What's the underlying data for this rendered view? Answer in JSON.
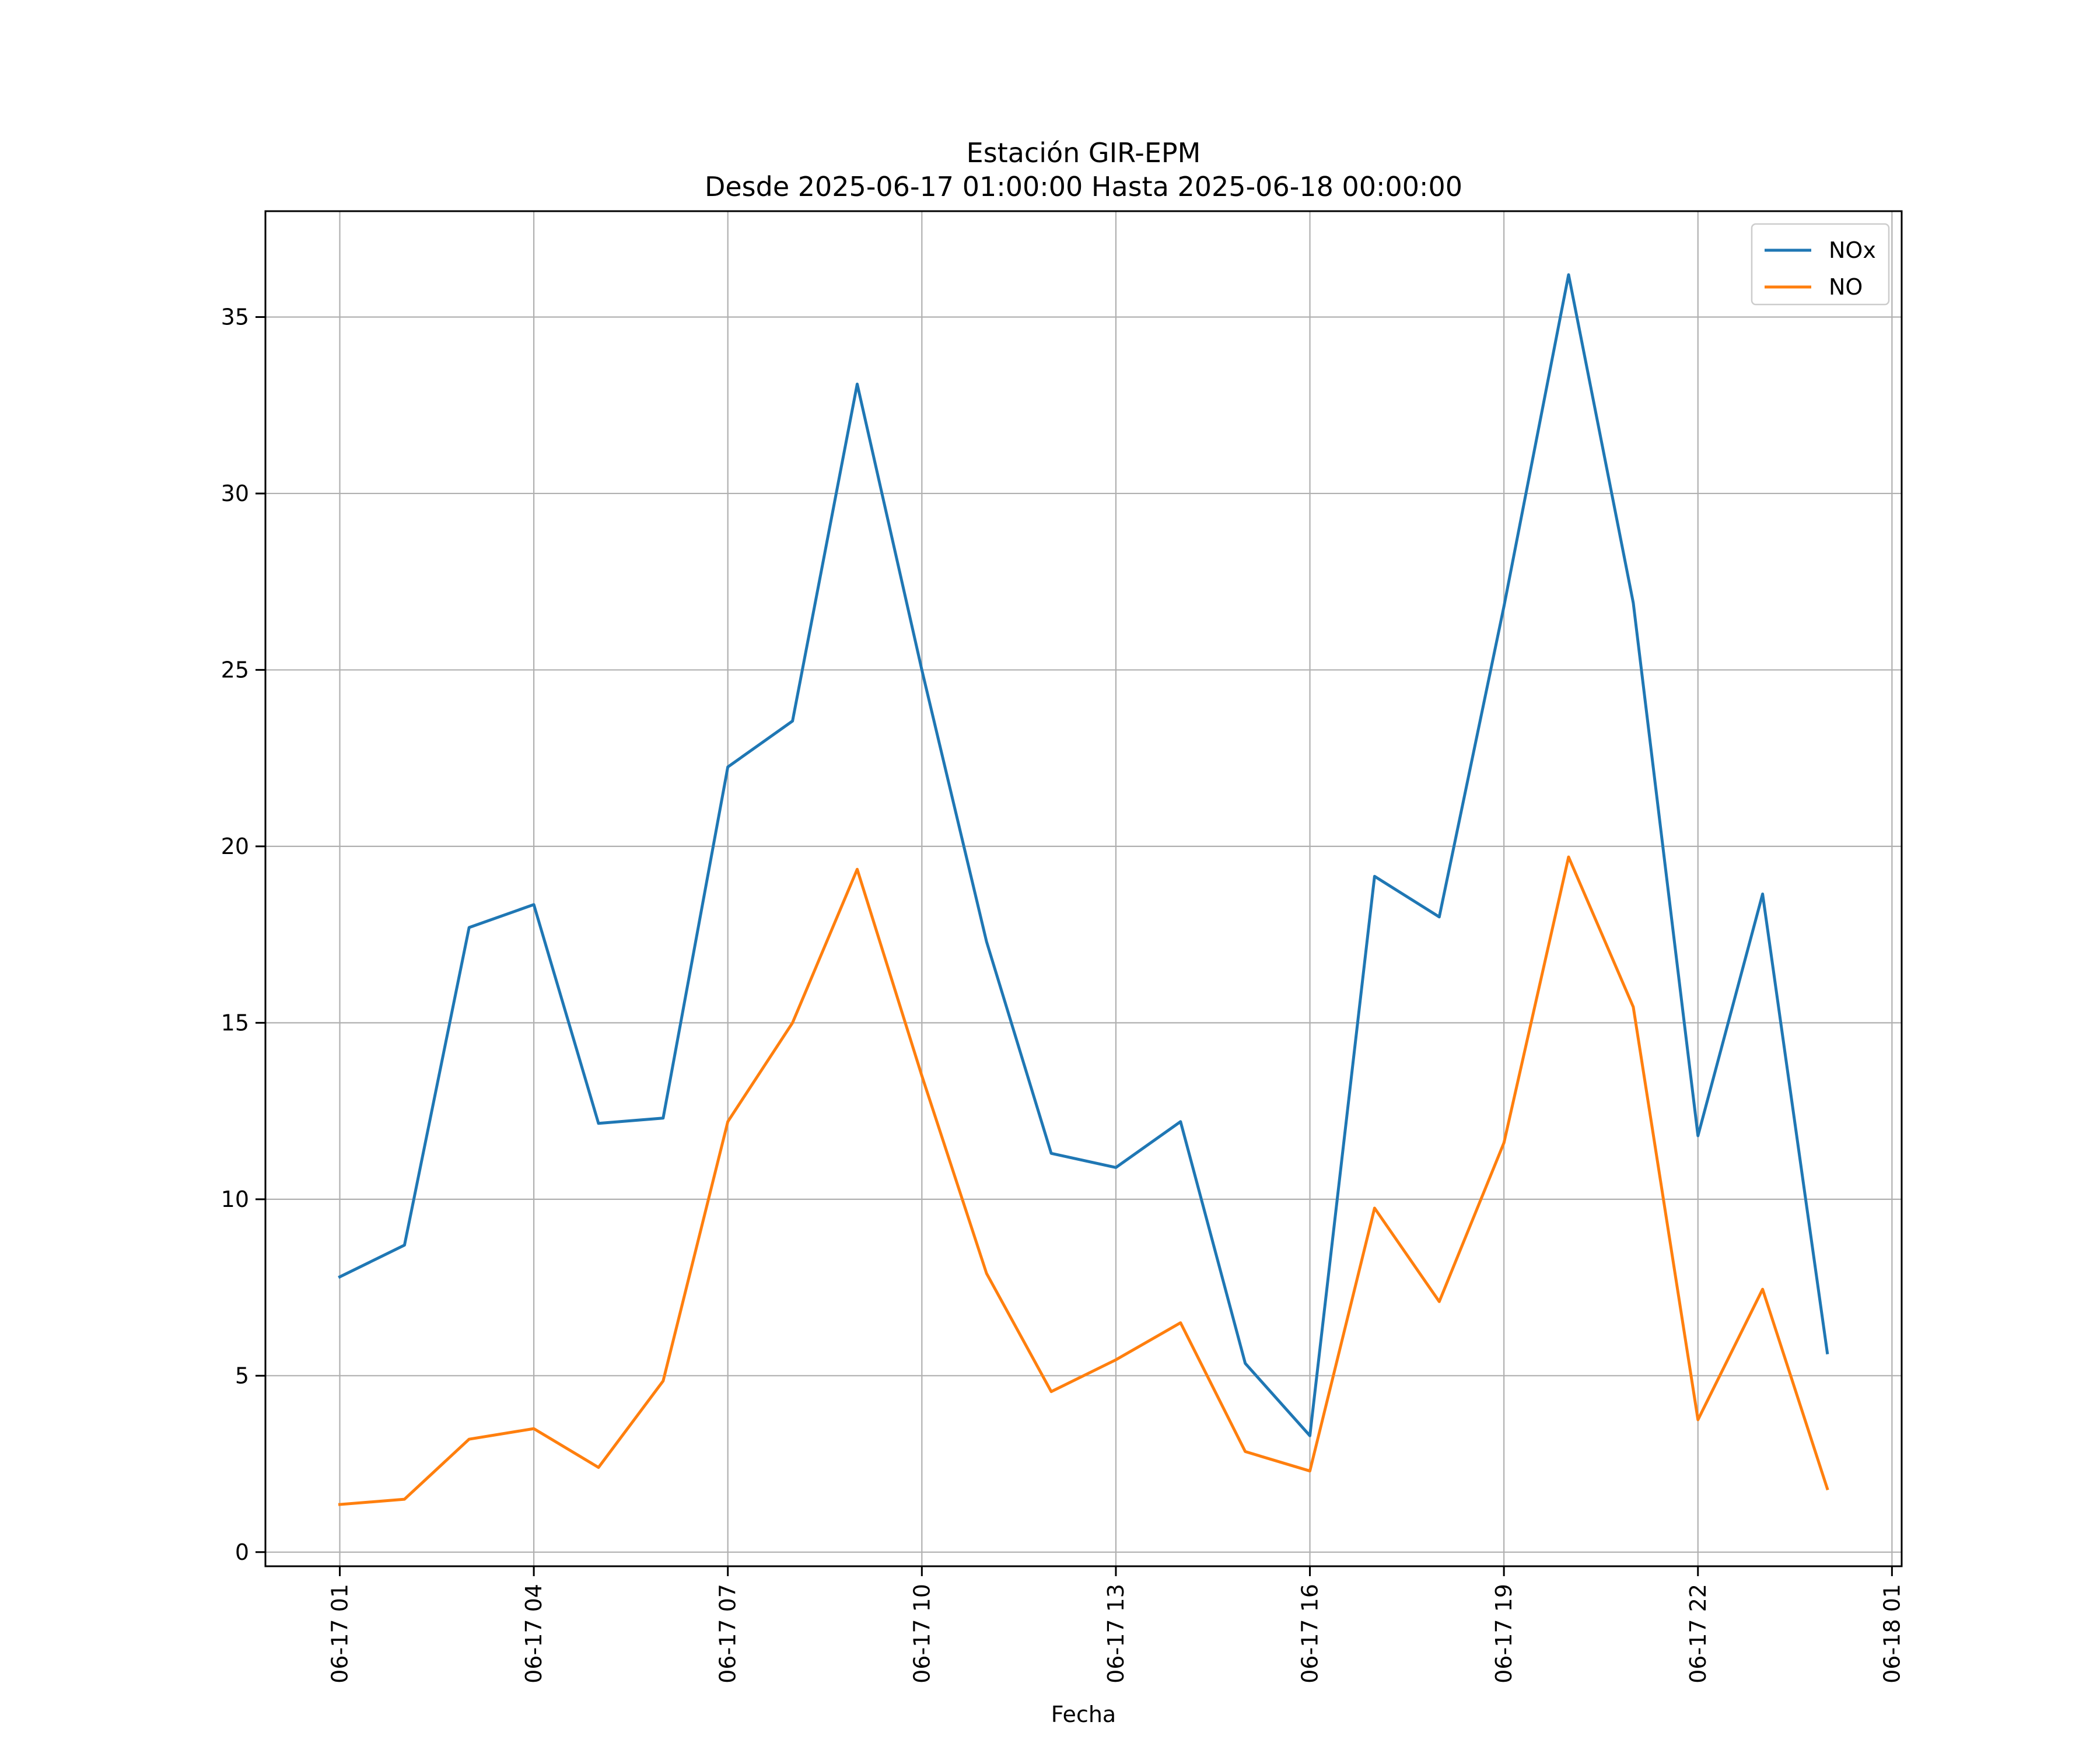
{
  "chart_data": {
    "type": "line",
    "title": "Estación GIR-EPM",
    "subtitle": "Desde 2025-06-17 01:00:00 Hasta 2025-06-18 00:00:00",
    "xlabel": "Fecha",
    "ylabel": "",
    "x": [
      "2025-06-17 01:00",
      "2025-06-17 02:00",
      "2025-06-17 03:00",
      "2025-06-17 04:00",
      "2025-06-17 05:00",
      "2025-06-17 06:00",
      "2025-06-17 07:00",
      "2025-06-17 08:00",
      "2025-06-17 09:00",
      "2025-06-17 10:00",
      "2025-06-17 11:00",
      "2025-06-17 12:00",
      "2025-06-17 13:00",
      "2025-06-17 14:00",
      "2025-06-17 15:00",
      "2025-06-17 16:00",
      "2025-06-17 17:00",
      "2025-06-17 18:00",
      "2025-06-17 19:00",
      "2025-06-17 20:00",
      "2025-06-17 21:00",
      "2025-06-17 22:00",
      "2025-06-17 23:00",
      "2025-06-18 00:00"
    ],
    "series": [
      {
        "name": "NOx",
        "color": "#1f77b4",
        "values": [
          7.8,
          8.7,
          17.7,
          18.35,
          12.15,
          12.3,
          22.25,
          23.55,
          33.1,
          25.0,
          17.3,
          11.3,
          10.9,
          12.2,
          5.35,
          3.3,
          19.15,
          18.0,
          26.8,
          36.2,
          26.9,
          11.8,
          18.65,
          5.65
        ]
      },
      {
        "name": "NO",
        "color": "#ff7f0e",
        "values": [
          1.35,
          1.5,
          3.2,
          3.5,
          2.4,
          4.85,
          12.2,
          15.0,
          19.35,
          13.5,
          7.9,
          4.55,
          5.45,
          6.5,
          2.85,
          2.3,
          9.75,
          7.1,
          11.6,
          19.7,
          15.45,
          3.75,
          7.45,
          1.8
        ]
      }
    ],
    "xticks": [
      "06-17 01",
      "06-17 04",
      "06-17 07",
      "06-17 10",
      "06-17 13",
      "06-17 16",
      "06-17 19",
      "06-17 22",
      "06-18 01"
    ],
    "yticks": [
      0,
      5,
      10,
      15,
      20,
      25,
      30,
      35
    ],
    "xlim": [
      "2025-06-16 23:51",
      "2025-06-18 01:09"
    ],
    "ylim": [
      -0.4,
      38.0
    ],
    "grid": true,
    "legend_position": "top-right"
  }
}
